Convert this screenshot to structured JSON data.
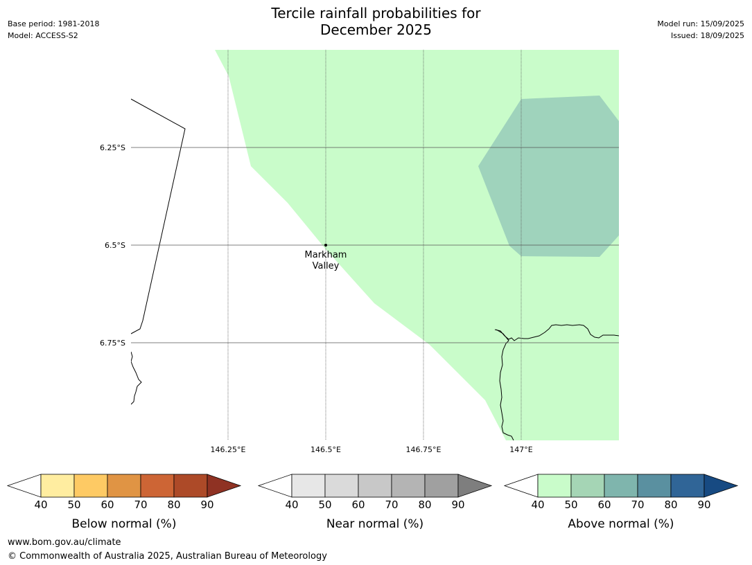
{
  "header": {
    "title_line1": "Tercile rainfall probabilities for",
    "title_line2": "December 2025",
    "base_period": "Base period: 1981-2018",
    "model": "Model: ACCESS-S2",
    "model_run": "Model run: 15/09/2025",
    "issued": "Issued: 18/09/2025"
  },
  "map": {
    "latitude_labels": [
      "6.25°S",
      "6.5°S",
      "6.75°S"
    ],
    "longitude_labels": [
      "146.25°E",
      "146.5°E",
      "146.75°E",
      "147°E"
    ],
    "place": {
      "name_line1": "Markham",
      "name_line2": "Valley",
      "lat": -6.5,
      "lon": 146.5
    },
    "regions": [
      {
        "category": "Above normal",
        "range": "40-50",
        "color": "#c9fcca"
      },
      {
        "category": "Above normal",
        "range": "50-60",
        "color": "#9fd3bc"
      }
    ]
  },
  "colorbars": [
    {
      "label": "Below normal (%)",
      "ticks": [
        "40",
        "50",
        "60",
        "70",
        "80",
        "90"
      ],
      "colors": [
        "#ffeda0",
        "#feca64",
        "#e09444",
        "#cd6535",
        "#ad4a28",
        "#8f3223"
      ]
    },
    {
      "label": "Near normal (%)",
      "ticks": [
        "40",
        "50",
        "60",
        "70",
        "80",
        "90"
      ],
      "colors": [
        "#e7e7e7",
        "#dadada",
        "#c8c8c8",
        "#b4b4b4",
        "#a0a0a0",
        "#7e7e7e"
      ]
    },
    {
      "label": "Above normal (%)",
      "ticks": [
        "40",
        "50",
        "60",
        "70",
        "80",
        "90"
      ],
      "colors": [
        "#c9fcca",
        "#a5d5b5",
        "#7fb5ad",
        "#5a90a0",
        "#306597",
        "#174a82"
      ]
    }
  ],
  "footer": {
    "url": "www.bom.gov.au/climate",
    "copyright": "© Commonwealth of Australia 2025, Australian Bureau of Meteorology"
  }
}
